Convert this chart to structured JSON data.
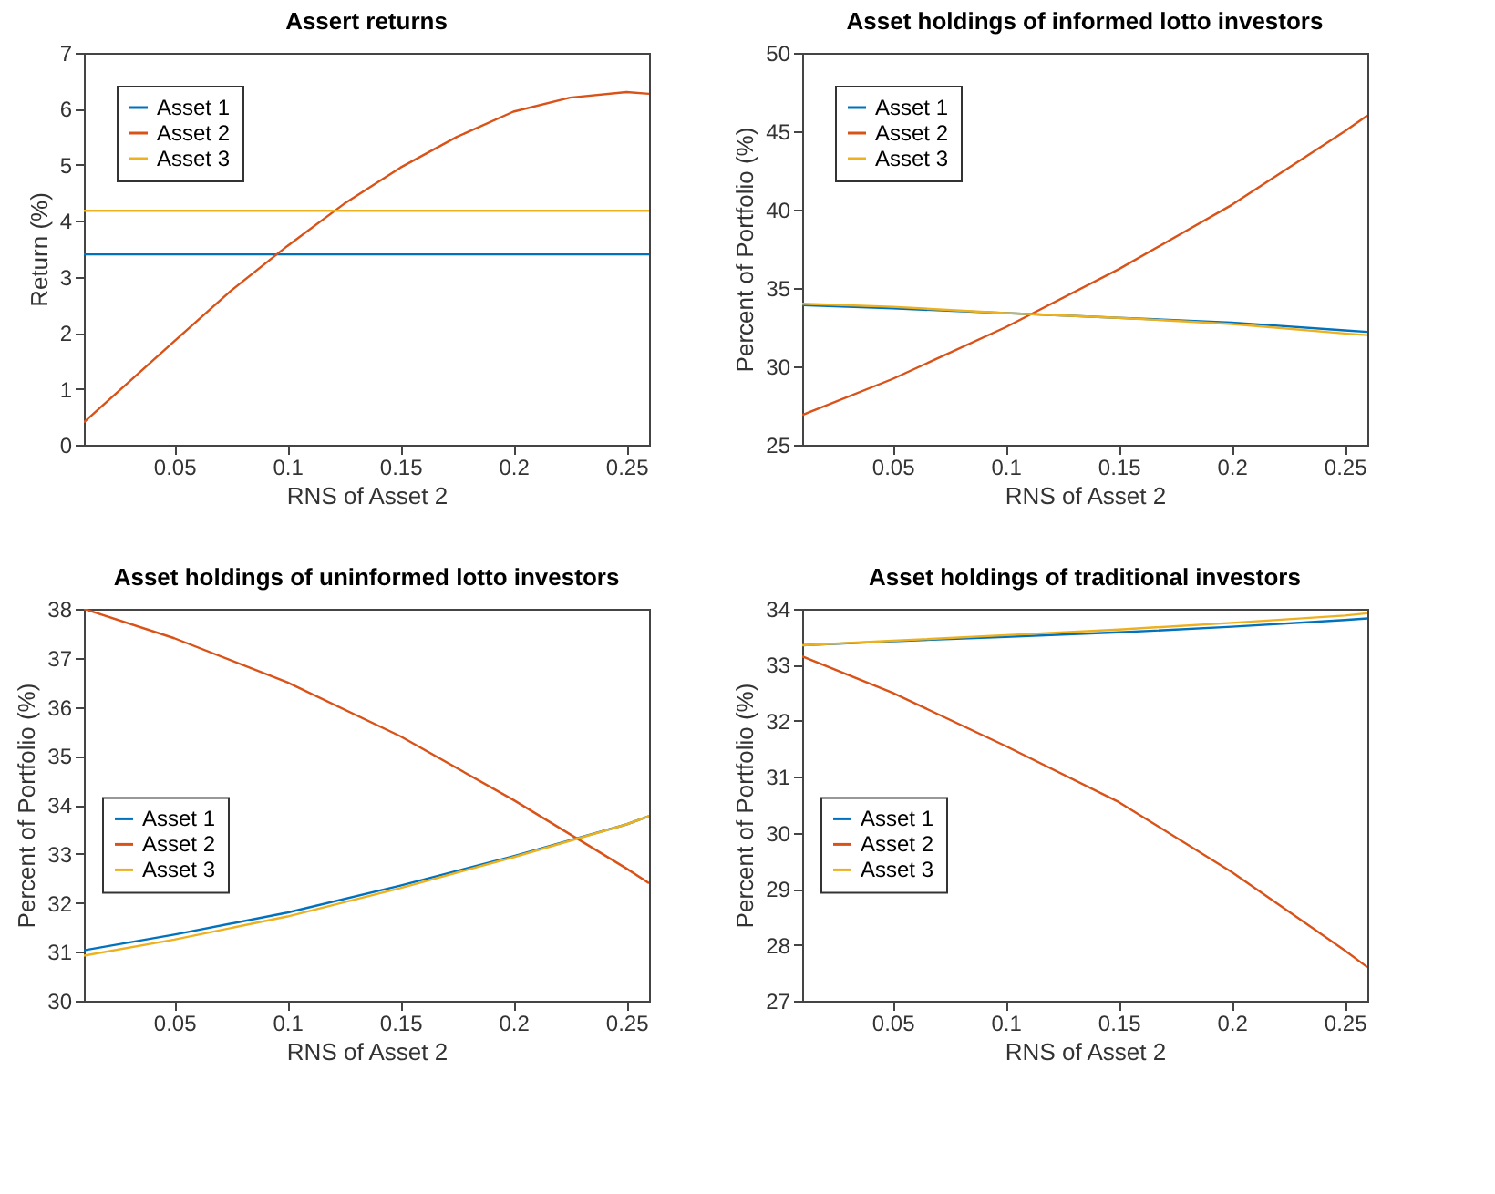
{
  "chart_data": [
    {
      "type": "line",
      "title": "Assert returns",
      "xlabel": "RNS of Asset 2",
      "ylabel": "Return (%)",
      "xlim": [
        0.01,
        0.26
      ],
      "xticks": [
        0.05,
        0.1,
        0.15,
        0.2,
        0.25
      ],
      "ylim": [
        0,
        7
      ],
      "yticks": [
        0,
        1,
        2,
        3,
        4,
        5,
        6,
        7
      ],
      "grid": false,
      "legend": "top left",
      "x": [
        0.01,
        0.05,
        0.075,
        0.1,
        0.125,
        0.15,
        0.175,
        0.2,
        0.225,
        0.25,
        0.26
      ],
      "series": [
        {
          "name": "Asset 1",
          "color": "#0072bd",
          "values": [
            3.4,
            3.4,
            3.4,
            3.4,
            3.4,
            3.4,
            3.4,
            3.4,
            3.4,
            3.4,
            3.4
          ]
        },
        {
          "name": "Asset 2",
          "color": "#d95319",
          "values": [
            0.4,
            1.85,
            2.75,
            3.55,
            4.3,
            4.95,
            5.5,
            5.95,
            6.2,
            6.3,
            6.27
          ]
        },
        {
          "name": "Asset 3",
          "color": "#edb120",
          "values": [
            4.18,
            4.18,
            4.18,
            4.18,
            4.18,
            4.18,
            4.18,
            4.18,
            4.18,
            4.18,
            4.18
          ]
        }
      ]
    },
    {
      "type": "line",
      "title": "Asset holdings of informed lotto investors",
      "xlabel": "RNS of Asset 2",
      "ylabel": "Percent of Portfolio (%)",
      "xlim": [
        0.01,
        0.26
      ],
      "xticks": [
        0.05,
        0.1,
        0.15,
        0.2,
        0.25
      ],
      "ylim": [
        25,
        50
      ],
      "yticks": [
        25,
        30,
        35,
        40,
        45,
        50
      ],
      "grid": false,
      "legend": "top left",
      "x": [
        0.01,
        0.05,
        0.1,
        0.15,
        0.2,
        0.25,
        0.26
      ],
      "series": [
        {
          "name": "Asset 1",
          "color": "#0072bd",
          "values": [
            33.9,
            33.7,
            33.4,
            33.1,
            32.8,
            32.3,
            32.2
          ]
        },
        {
          "name": "Asset 2",
          "color": "#d95319",
          "values": [
            26.9,
            29.2,
            32.5,
            36.2,
            40.3,
            45.0,
            46.0
          ]
        },
        {
          "name": "Asset 3",
          "color": "#edb120",
          "values": [
            34.0,
            33.8,
            33.4,
            33.1,
            32.7,
            32.1,
            32.0
          ]
        }
      ]
    },
    {
      "type": "line",
      "title": "Asset holdings of uninformed lotto investors",
      "xlabel": "RNS of Asset 2",
      "ylabel": "Percent of Portfolio (%)",
      "xlim": [
        0.01,
        0.26
      ],
      "xticks": [
        0.05,
        0.1,
        0.15,
        0.2,
        0.25
      ],
      "ylim": [
        30,
        38
      ],
      "yticks": [
        30,
        31,
        32,
        33,
        34,
        35,
        36,
        37,
        38
      ],
      "grid": false,
      "legend": "left",
      "x": [
        0.01,
        0.05,
        0.1,
        0.15,
        0.2,
        0.25,
        0.26
      ],
      "series": [
        {
          "name": "Asset 1",
          "color": "#0072bd",
          "values": [
            31.03,
            31.35,
            31.8,
            32.35,
            32.95,
            33.6,
            33.77
          ]
        },
        {
          "name": "Asset 2",
          "color": "#d95319",
          "values": [
            38.0,
            37.4,
            36.5,
            35.4,
            34.1,
            32.7,
            32.4
          ]
        },
        {
          "name": "Asset 3",
          "color": "#edb120",
          "values": [
            30.92,
            31.25,
            31.72,
            32.3,
            32.93,
            33.6,
            33.77
          ]
        }
      ]
    },
    {
      "type": "line",
      "title": "Asset holdings of traditional investors",
      "xlabel": "RNS of Asset 2",
      "ylabel": "Percent of Portfolio (%)",
      "xlim": [
        0.01,
        0.26
      ],
      "xticks": [
        0.05,
        0.1,
        0.15,
        0.2,
        0.25
      ],
      "ylim": [
        27,
        34
      ],
      "yticks": [
        27,
        28,
        29,
        30,
        31,
        32,
        33,
        34
      ],
      "grid": false,
      "legend": "left",
      "x": [
        0.01,
        0.05,
        0.1,
        0.15,
        0.2,
        0.25,
        0.26
      ],
      "series": [
        {
          "name": "Asset 1",
          "color": "#0072bd",
          "values": [
            33.35,
            33.42,
            33.5,
            33.58,
            33.68,
            33.8,
            33.83
          ]
        },
        {
          "name": "Asset 2",
          "color": "#d95319",
          "values": [
            33.15,
            32.5,
            31.55,
            30.55,
            29.3,
            27.9,
            27.6
          ]
        },
        {
          "name": "Asset 3",
          "color": "#edb120",
          "values": [
            33.35,
            33.43,
            33.53,
            33.63,
            33.75,
            33.88,
            33.92
          ]
        }
      ]
    }
  ]
}
